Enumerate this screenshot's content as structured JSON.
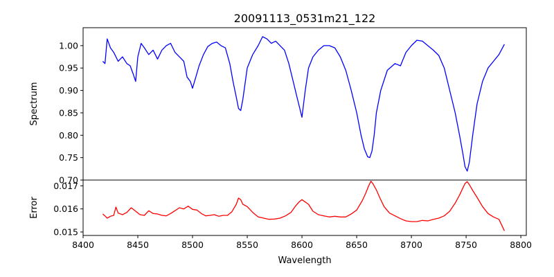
{
  "chart_data": [
    {
      "type": "line",
      "title": "20091113_0531m21_122",
      "xlabel": "",
      "ylabel": "Spectrum",
      "xlim": [
        8400,
        8805
      ],
      "ylim": [
        0.7,
        1.04
      ],
      "x_ticks": [],
      "y_ticks": [
        "0.70",
        "0.75",
        "0.80",
        "0.85",
        "0.90",
        "0.95",
        "1.00"
      ],
      "grid": false,
      "series": [
        {
          "color": "#0000ff",
          "x": [
            8418,
            8420,
            8422,
            8425,
            8428,
            8432,
            8436,
            8440,
            8443,
            8446,
            8448,
            8450,
            8453,
            8456,
            8460,
            8464,
            8468,
            8472,
            8476,
            8480,
            8484,
            8488,
            8492,
            8495,
            8498,
            8500,
            8503,
            8506,
            8510,
            8514,
            8518,
            8522,
            8526,
            8530,
            8534,
            8537,
            8540,
            8542,
            8544,
            8546,
            8550,
            8555,
            8560,
            8564,
            8568,
            8572,
            8576,
            8580,
            8584,
            8588,
            8592,
            8595,
            8598,
            8600,
            8603,
            8606,
            8610,
            8615,
            8620,
            8625,
            8630,
            8635,
            8640,
            8645,
            8650,
            8654,
            8657,
            8660,
            8662,
            8664,
            8666,
            8668,
            8672,
            8678,
            8685,
            8690,
            8695,
            8700,
            8705,
            8710,
            8715,
            8720,
            8725,
            8730,
            8735,
            8740,
            8744,
            8747,
            8749,
            8751,
            8753,
            8756,
            8760,
            8765,
            8770,
            8775,
            8780,
            8785
          ],
          "y": [
            0.965,
            0.96,
            1.015,
            0.995,
            0.985,
            0.965,
            0.975,
            0.96,
            0.955,
            0.935,
            0.92,
            0.975,
            1.005,
            0.995,
            0.98,
            0.99,
            0.97,
            0.99,
            1.0,
            1.005,
            0.985,
            0.975,
            0.965,
            0.93,
            0.92,
            0.905,
            0.93,
            0.955,
            0.98,
            0.998,
            1.005,
            1.008,
            1.0,
            0.995,
            0.96,
            0.92,
            0.885,
            0.86,
            0.855,
            0.88,
            0.95,
            0.98,
            1.0,
            1.02,
            1.015,
            1.005,
            1.01,
            1.0,
            0.99,
            0.96,
            0.92,
            0.89,
            0.86,
            0.84,
            0.9,
            0.95,
            0.975,
            0.99,
            1.0,
            1.0,
            0.995,
            0.975,
            0.945,
            0.9,
            0.85,
            0.8,
            0.77,
            0.752,
            0.75,
            0.765,
            0.8,
            0.85,
            0.9,
            0.945,
            0.96,
            0.955,
            0.985,
            1.0,
            1.012,
            1.01,
            1.0,
            0.99,
            0.978,
            0.95,
            0.9,
            0.85,
            0.8,
            0.76,
            0.73,
            0.72,
            0.74,
            0.8,
            0.87,
            0.92,
            0.95,
            0.965,
            0.98,
            1.003
          ]
        }
      ]
    },
    {
      "type": "line",
      "title": "",
      "xlabel": "Wavelength",
      "ylabel": "Error",
      "xlim": [
        8400,
        8805
      ],
      "ylim": [
        0.01485,
        0.01725
      ],
      "x_ticks": [
        "8400",
        "8450",
        "8500",
        "8550",
        "8600",
        "8650",
        "8700",
        "8750",
        "8800"
      ],
      "y_ticks": [
        "0.015",
        "0.016",
        "0.017"
      ],
      "grid": false,
      "series": [
        {
          "color": "#ff0000",
          "x": [
            8418,
            8420,
            8422,
            8425,
            8428,
            8430,
            8432,
            8436,
            8440,
            8444,
            8448,
            8452,
            8456,
            8460,
            8464,
            8468,
            8472,
            8476,
            8480,
            8484,
            8488,
            8492,
            8496,
            8500,
            8504,
            8508,
            8512,
            8516,
            8520,
            8524,
            8528,
            8532,
            8536,
            8540,
            8542,
            8544,
            8546,
            8550,
            8555,
            8560,
            8565,
            8570,
            8575,
            8580,
            8585,
            8590,
            8594,
            8597,
            8600,
            8603,
            8606,
            8610,
            8615,
            8620,
            8625,
            8630,
            8635,
            8640,
            8645,
            8650,
            8655,
            8658,
            8661,
            8663,
            8665,
            8668,
            8671,
            8675,
            8680,
            8685,
            8690,
            8695,
            8700,
            8705,
            8710,
            8715,
            8720,
            8725,
            8730,
            8735,
            8740,
            8744,
            8747,
            8749,
            8751,
            8753,
            8756,
            8760,
            8765,
            8770,
            8775,
            8780,
            8785
          ],
          "y": [
            0.01578,
            0.0157,
            0.0156,
            0.01568,
            0.01572,
            0.01608,
            0.01582,
            0.01575,
            0.01585,
            0.01605,
            0.0159,
            0.01575,
            0.01572,
            0.01592,
            0.0158,
            0.01578,
            0.01572,
            0.0157,
            0.0158,
            0.01592,
            0.01605,
            0.016,
            0.01612,
            0.01598,
            0.01595,
            0.0158,
            0.0157,
            0.01572,
            0.01575,
            0.01568,
            0.01572,
            0.01572,
            0.01588,
            0.0162,
            0.01647,
            0.0164,
            0.0162,
            0.0161,
            0.01585,
            0.01565,
            0.0156,
            0.01555,
            0.01556,
            0.0156,
            0.0157,
            0.01585,
            0.01612,
            0.01628,
            0.0164,
            0.0163,
            0.0162,
            0.0159,
            0.01575,
            0.0157,
            0.01565,
            0.01568,
            0.01565,
            0.01565,
            0.01578,
            0.01595,
            0.01635,
            0.01665,
            0.017,
            0.0172,
            0.01708,
            0.01682,
            0.0165,
            0.0161,
            0.01582,
            0.0157,
            0.01558,
            0.01548,
            0.01545,
            0.01545,
            0.0155,
            0.01548,
            0.01555,
            0.0156,
            0.0157,
            0.0159,
            0.01625,
            0.0166,
            0.0169,
            0.0171,
            0.01718,
            0.01705,
            0.0168,
            0.0165,
            0.0161,
            0.0158,
            0.01565,
            0.01555,
            0.01505
          ]
        }
      ]
    }
  ]
}
